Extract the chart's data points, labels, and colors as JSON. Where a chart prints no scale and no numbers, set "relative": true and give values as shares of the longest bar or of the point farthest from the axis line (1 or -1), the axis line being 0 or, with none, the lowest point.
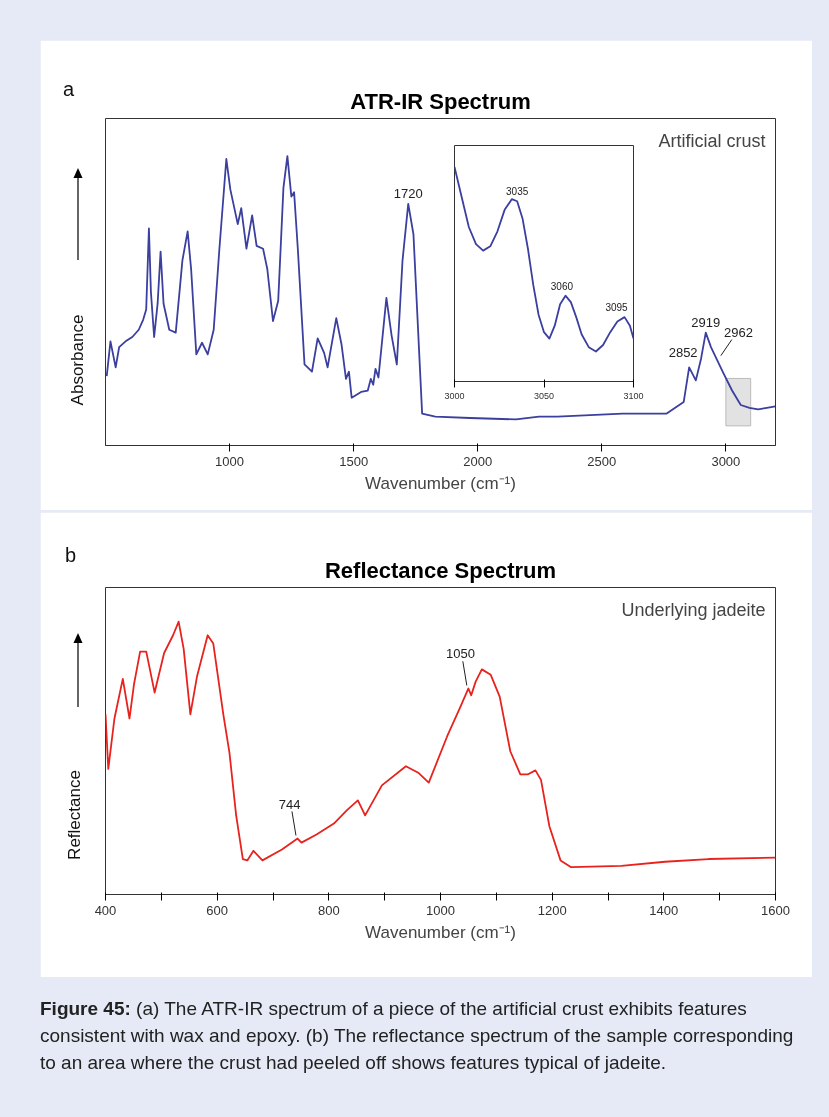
{
  "chart_data": [
    {
      "type": "line",
      "title": "ATR-IR Spectrum",
      "xlabel": "Wavenumber (cm⁻¹)",
      "ylabel": "Absorbance",
      "relative": true,
      "tick_labels": "x",
      "xlim": [
        500,
        3200
      ],
      "xticks": [
        1000,
        1500,
        2000,
        2500,
        3000
      ],
      "bands": [
        {
          "axis": "x",
          "from": 3000,
          "to": 3100,
          "label": null,
          "color": "#e2e2e2"
        }
      ],
      "x": [
        505,
        520,
        541,
        555,
        581,
        608,
        634,
        652,
        664,
        675,
        683,
        696,
        710,
        722,
        734,
        757,
        783,
        810,
        831,
        845,
        866,
        889,
        912,
        936,
        959,
        987,
        1003,
        1033,
        1047,
        1068,
        1091,
        1109,
        1135,
        1152,
        1175,
        1196,
        1217,
        1233,
        1249,
        1260,
        1275,
        1302,
        1332,
        1355,
        1381,
        1395,
        1430,
        1451,
        1469,
        1481,
        1492,
        1530,
        1557,
        1569,
        1579,
        1588,
        1600,
        1632,
        1653,
        1674,
        1697,
        1720,
        1741,
        1776,
        1829,
        1969,
        2154,
        2247,
        2321,
        2584,
        2760,
        2830,
        2852,
        2879,
        2900,
        2919,
        2940,
        2962,
        2990,
        3025,
        3060,
        3095,
        3130,
        3165,
        3199
      ],
      "series": [
        {
          "color": "#3b3f9e",
          "values": [
            0.24,
            0.36,
            0.27,
            0.34,
            0.36,
            0.375,
            0.4,
            0.435,
            0.47,
            0.75,
            0.53,
            0.375,
            0.49,
            0.67,
            0.49,
            0.4,
            0.39,
            0.64,
            0.74,
            0.61,
            0.315,
            0.355,
            0.315,
            0.4,
            0.68,
            0.99,
            0.885,
            0.765,
            0.82,
            0.68,
            0.795,
            0.69,
            0.68,
            0.61,
            0.43,
            0.5,
            0.89,
            1.0,
            0.86,
            0.875,
            0.68,
            0.28,
            0.255,
            0.37,
            0.32,
            0.27,
            0.44,
            0.35,
            0.23,
            0.255,
            0.165,
            0.185,
            0.19,
            0.23,
            0.21,
            0.265,
            0.235,
            0.51,
            0.38,
            0.28,
            0.64,
            0.835,
            0.73,
            0.11,
            0.1,
            0.095,
            0.09,
            0.1,
            0.1,
            0.11,
            0.11,
            0.15,
            0.27,
            0.225,
            0.3,
            0.39,
            0.34,
            0.3,
            0.25,
            0.19,
            0.14,
            0.13,
            0.125,
            0.13,
            0.135
          ]
        }
      ],
      "annotations": [
        "a",
        "Artificial crust",
        {
          "text": "1720",
          "x": 1720,
          "y": 0.835
        },
        {
          "text": "2852",
          "x": 2852,
          "y": 0.27
        },
        {
          "text": "2919",
          "x": 2919,
          "y": 0.39
        },
        {
          "text": "2962",
          "x": 2962,
          "y": 0.3
        }
      ]
    },
    {
      "type": "line",
      "relative": true,
      "tick_labels": "x",
      "xlim": [
        3000,
        3100
      ],
      "xticks": [
        3000,
        3050,
        3100
      ],
      "x": [
        3000,
        3004,
        3008,
        3012,
        3016,
        3020,
        3024,
        3028,
        3032,
        3035,
        3038,
        3041,
        3044,
        3047,
        3050,
        3053,
        3056,
        3059,
        3062,
        3065,
        3068,
        3071,
        3075,
        3079,
        3083,
        3087,
        3091,
        3095,
        3098,
        3100
      ],
      "series": [
        {
          "color": "#3b3f9e",
          "values": [
            1.0,
            0.86,
            0.72,
            0.64,
            0.61,
            0.63,
            0.7,
            0.8,
            0.85,
            0.84,
            0.76,
            0.62,
            0.45,
            0.31,
            0.23,
            0.2,
            0.26,
            0.36,
            0.4,
            0.37,
            0.3,
            0.22,
            0.16,
            0.14,
            0.17,
            0.23,
            0.28,
            0.3,
            0.26,
            0.2
          ]
        }
      ],
      "annotations": [
        {
          "text": "3035",
          "x": 3035,
          "y": 0.84
        },
        {
          "text": "3060",
          "x": 3060,
          "y": 0.4
        },
        {
          "text": "3095",
          "x": 3095,
          "y": 0.3
        }
      ]
    },
    {
      "type": "line",
      "title": "Reflectance Spectrum",
      "xlabel": "Wavenumber (cm⁻¹)",
      "ylabel": "Reflectance",
      "relative": true,
      "tick_labels": "x",
      "xlim": [
        400,
        1600
      ],
      "xticks": [
        400,
        {
          "value": 500,
          "label": null
        },
        600,
        {
          "value": 700,
          "label": null
        },
        800,
        {
          "value": 900,
          "label": null
        },
        1000,
        {
          "value": 1100,
          "label": null
        },
        1200,
        {
          "value": 1300,
          "label": null
        },
        1400,
        {
          "value": 1500,
          "label": null
        },
        1600
      ],
      "x": [
        400,
        405,
        416,
        431,
        443,
        451,
        462,
        473,
        488,
        505,
        521,
        531,
        540,
        552,
        564,
        583,
        593,
        611,
        622,
        634,
        646,
        654,
        665,
        681,
        716,
        744,
        751,
        778,
        809,
        833,
        852,
        865,
        895,
        938,
        961,
        979,
        1012,
        1035,
        1050,
        1055,
        1063,
        1074,
        1090,
        1106,
        1125,
        1143,
        1156,
        1170,
        1180,
        1195,
        1215,
        1234,
        1324,
        1402,
        1480,
        1600
      ],
      "series": [
        {
          "color": "#e8231e",
          "values": [
            0.66,
            0.46,
            0.645,
            0.79,
            0.645,
            0.77,
            0.89,
            0.89,
            0.74,
            0.885,
            0.95,
            1.0,
            0.9,
            0.66,
            0.8,
            0.95,
            0.92,
            0.66,
            0.52,
            0.29,
            0.13,
            0.125,
            0.16,
            0.125,
            0.165,
            0.205,
            0.19,
            0.22,
            0.26,
            0.31,
            0.345,
            0.29,
            0.4,
            0.47,
            0.445,
            0.41,
            0.58,
            0.685,
            0.755,
            0.73,
            0.78,
            0.825,
            0.805,
            0.725,
            0.525,
            0.44,
            0.44,
            0.455,
            0.42,
            0.25,
            0.125,
            0.1,
            0.105,
            0.12,
            0.13,
            0.135
          ]
        }
      ],
      "annotations": [
        "b",
        "Underlying jadeite",
        {
          "text": "744",
          "x": 744,
          "y": 0.205
        },
        {
          "text": "1050",
          "x": 1050,
          "y": 0.755
        },
        "Figure 45: (a) The ATR-IR spectrum of a piece of the artificial crust exhibits features consistent with wax and epoxy. (b) The reflectance spectrum of the sample corresponding to an area where the crust had peeled off shows features typical of jadeite."
      ]
    }
  ]
}
